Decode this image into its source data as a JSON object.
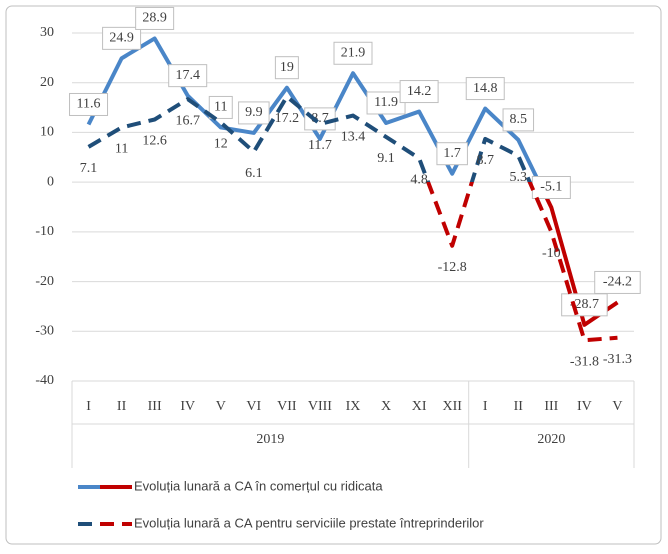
{
  "chart_data": {
    "type": "line",
    "categories": [
      "I",
      "II",
      "III",
      "IV",
      "V",
      "VI",
      "VII",
      "VIII",
      "IX",
      "X",
      "XI",
      "XII",
      "I",
      "II",
      "III",
      "IV",
      "V"
    ],
    "groups": [
      {
        "name": "2019",
        "count": 12
      },
      {
        "name": "2020",
        "count": 5
      }
    ],
    "series": [
      {
        "name": "Evoluția lunară a CA în comerțul cu ridicata",
        "color": "#4a86c8",
        "negative_color": "#c00000",
        "dash": false,
        "values": [
          11.6,
          24.9,
          28.9,
          17.4,
          11,
          9.9,
          19,
          8.7,
          21.9,
          11.9,
          14.2,
          1.7,
          14.8,
          8.5,
          -5.1,
          -28.7,
          -24.2
        ]
      },
      {
        "name": "Evoluția lunară a CA pentru serviciile prestate întreprinderilor",
        "color": "#1f4e79",
        "negative_color": "#c00000",
        "dash": true,
        "values": [
          7.1,
          11,
          12.6,
          16.7,
          12,
          6.1,
          17.2,
          11.7,
          13.4,
          9.1,
          4.8,
          -12.8,
          8.7,
          5.3,
          -10,
          -31.8,
          -31.3
        ]
      }
    ],
    "ylim": [
      -40,
      30
    ],
    "yticks": [
      -40,
      -30,
      -20,
      -10,
      0,
      10,
      20,
      30
    ],
    "grid": true
  }
}
